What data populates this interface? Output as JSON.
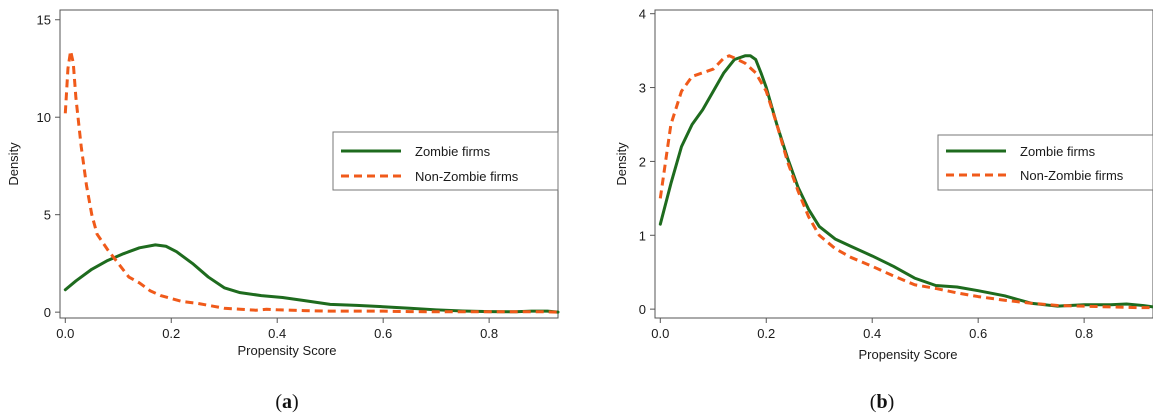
{
  "chart_data": [
    {
      "type": "line",
      "panel_label": "(a)",
      "panel_letter": "a",
      "xlabel": "Propensity Score",
      "ylabel": "Density",
      "xlim": [
        -0.01,
        0.93
      ],
      "ylim": [
        -0.3,
        15.5
      ],
      "xticks": [
        0.0,
        0.2,
        0.4,
        0.6,
        0.8
      ],
      "xtick_labels": [
        "0.0",
        "0.2",
        "0.4",
        "0.6",
        "0.8"
      ],
      "yticks": [
        0,
        5,
        10,
        15
      ],
      "ytick_labels": [
        "0",
        "5",
        "10",
        "15"
      ],
      "legend_position": "center-right",
      "series": [
        {
          "name": "Zombie firms",
          "color": "#1e6b1e",
          "style": "solid",
          "x": [
            0.0,
            0.02,
            0.05,
            0.08,
            0.11,
            0.14,
            0.17,
            0.19,
            0.21,
            0.24,
            0.27,
            0.3,
            0.33,
            0.37,
            0.41,
            0.45,
            0.5,
            0.55,
            0.6,
            0.65,
            0.7,
            0.75,
            0.8,
            0.85,
            0.88,
            0.91,
            0.93
          ],
          "y": [
            1.15,
            1.6,
            2.2,
            2.65,
            3.0,
            3.3,
            3.45,
            3.38,
            3.1,
            2.5,
            1.8,
            1.25,
            1.0,
            0.85,
            0.75,
            0.6,
            0.4,
            0.35,
            0.28,
            0.2,
            0.12,
            0.06,
            0.03,
            0.02,
            0.05,
            0.05,
            0.0
          ]
        },
        {
          "name": "Non-Zombie firms",
          "color": "#f05a1a",
          "style": "dashed",
          "x": [
            0.0,
            0.005,
            0.01,
            0.015,
            0.02,
            0.03,
            0.04,
            0.05,
            0.06,
            0.08,
            0.1,
            0.12,
            0.14,
            0.16,
            0.18,
            0.2,
            0.22,
            0.25,
            0.28,
            0.3,
            0.33,
            0.36,
            0.38,
            0.4,
            0.45,
            0.5,
            0.55,
            0.6,
            0.65,
            0.7,
            0.75,
            0.8,
            0.85,
            0.9,
            0.93
          ],
          "y": [
            10.2,
            12.5,
            13.4,
            12.8,
            11.0,
            8.5,
            6.5,
            5.0,
            4.0,
            3.2,
            2.5,
            1.8,
            1.5,
            1.1,
            0.85,
            0.7,
            0.55,
            0.45,
            0.3,
            0.2,
            0.15,
            0.1,
            0.15,
            0.12,
            0.08,
            0.05,
            0.05,
            0.05,
            0.03,
            0.02,
            0.02,
            0.02,
            0.02,
            0.02,
            0.0
          ]
        }
      ]
    },
    {
      "type": "line",
      "panel_label": "(b)",
      "panel_letter": "b",
      "xlabel": "Propensity Score",
      "ylabel": "Density",
      "xlim": [
        -0.01,
        0.93
      ],
      "ylim": [
        -0.12,
        4.05
      ],
      "xticks": [
        0.0,
        0.2,
        0.4,
        0.6,
        0.8
      ],
      "xtick_labels": [
        "0.0",
        "0.2",
        "0.4",
        "0.6",
        "0.8"
      ],
      "yticks": [
        0,
        1,
        2,
        3,
        4
      ],
      "ytick_labels": [
        "0",
        "1",
        "2",
        "3",
        "4"
      ],
      "legend_position": "center-right",
      "series": [
        {
          "name": "Zombie firms",
          "color": "#1e6b1e",
          "style": "solid",
          "x": [
            0.0,
            0.02,
            0.04,
            0.06,
            0.08,
            0.1,
            0.12,
            0.14,
            0.16,
            0.17,
            0.18,
            0.19,
            0.2,
            0.22,
            0.24,
            0.26,
            0.28,
            0.3,
            0.33,
            0.36,
            0.4,
            0.44,
            0.48,
            0.52,
            0.56,
            0.6,
            0.65,
            0.7,
            0.75,
            0.8,
            0.85,
            0.88,
            0.91,
            0.93
          ],
          "y": [
            1.15,
            1.7,
            2.2,
            2.5,
            2.7,
            2.95,
            3.2,
            3.38,
            3.43,
            3.43,
            3.38,
            3.2,
            3.0,
            2.5,
            2.05,
            1.65,
            1.35,
            1.12,
            0.95,
            0.85,
            0.72,
            0.58,
            0.42,
            0.32,
            0.3,
            0.25,
            0.18,
            0.08,
            0.04,
            0.06,
            0.06,
            0.07,
            0.05,
            0.03
          ]
        },
        {
          "name": "Non-Zombie firms",
          "color": "#f05a1a",
          "style": "dashed",
          "x": [
            0.0,
            0.02,
            0.04,
            0.06,
            0.08,
            0.1,
            0.12,
            0.13,
            0.14,
            0.16,
            0.18,
            0.2,
            0.22,
            0.24,
            0.26,
            0.28,
            0.3,
            0.33,
            0.36,
            0.4,
            0.44,
            0.48,
            0.52,
            0.56,
            0.6,
            0.65,
            0.7,
            0.75,
            0.8,
            0.85,
            0.9,
            0.93
          ],
          "y": [
            1.5,
            2.5,
            2.95,
            3.15,
            3.2,
            3.25,
            3.4,
            3.43,
            3.4,
            3.33,
            3.2,
            2.95,
            2.5,
            2.0,
            1.6,
            1.25,
            1.0,
            0.82,
            0.7,
            0.58,
            0.45,
            0.33,
            0.28,
            0.22,
            0.17,
            0.12,
            0.08,
            0.05,
            0.04,
            0.03,
            0.02,
            0.02
          ]
        }
      ]
    }
  ],
  "legend_labels": {
    "zombie": "Zombie firms",
    "non_zombie": "Non-Zombie firms"
  }
}
